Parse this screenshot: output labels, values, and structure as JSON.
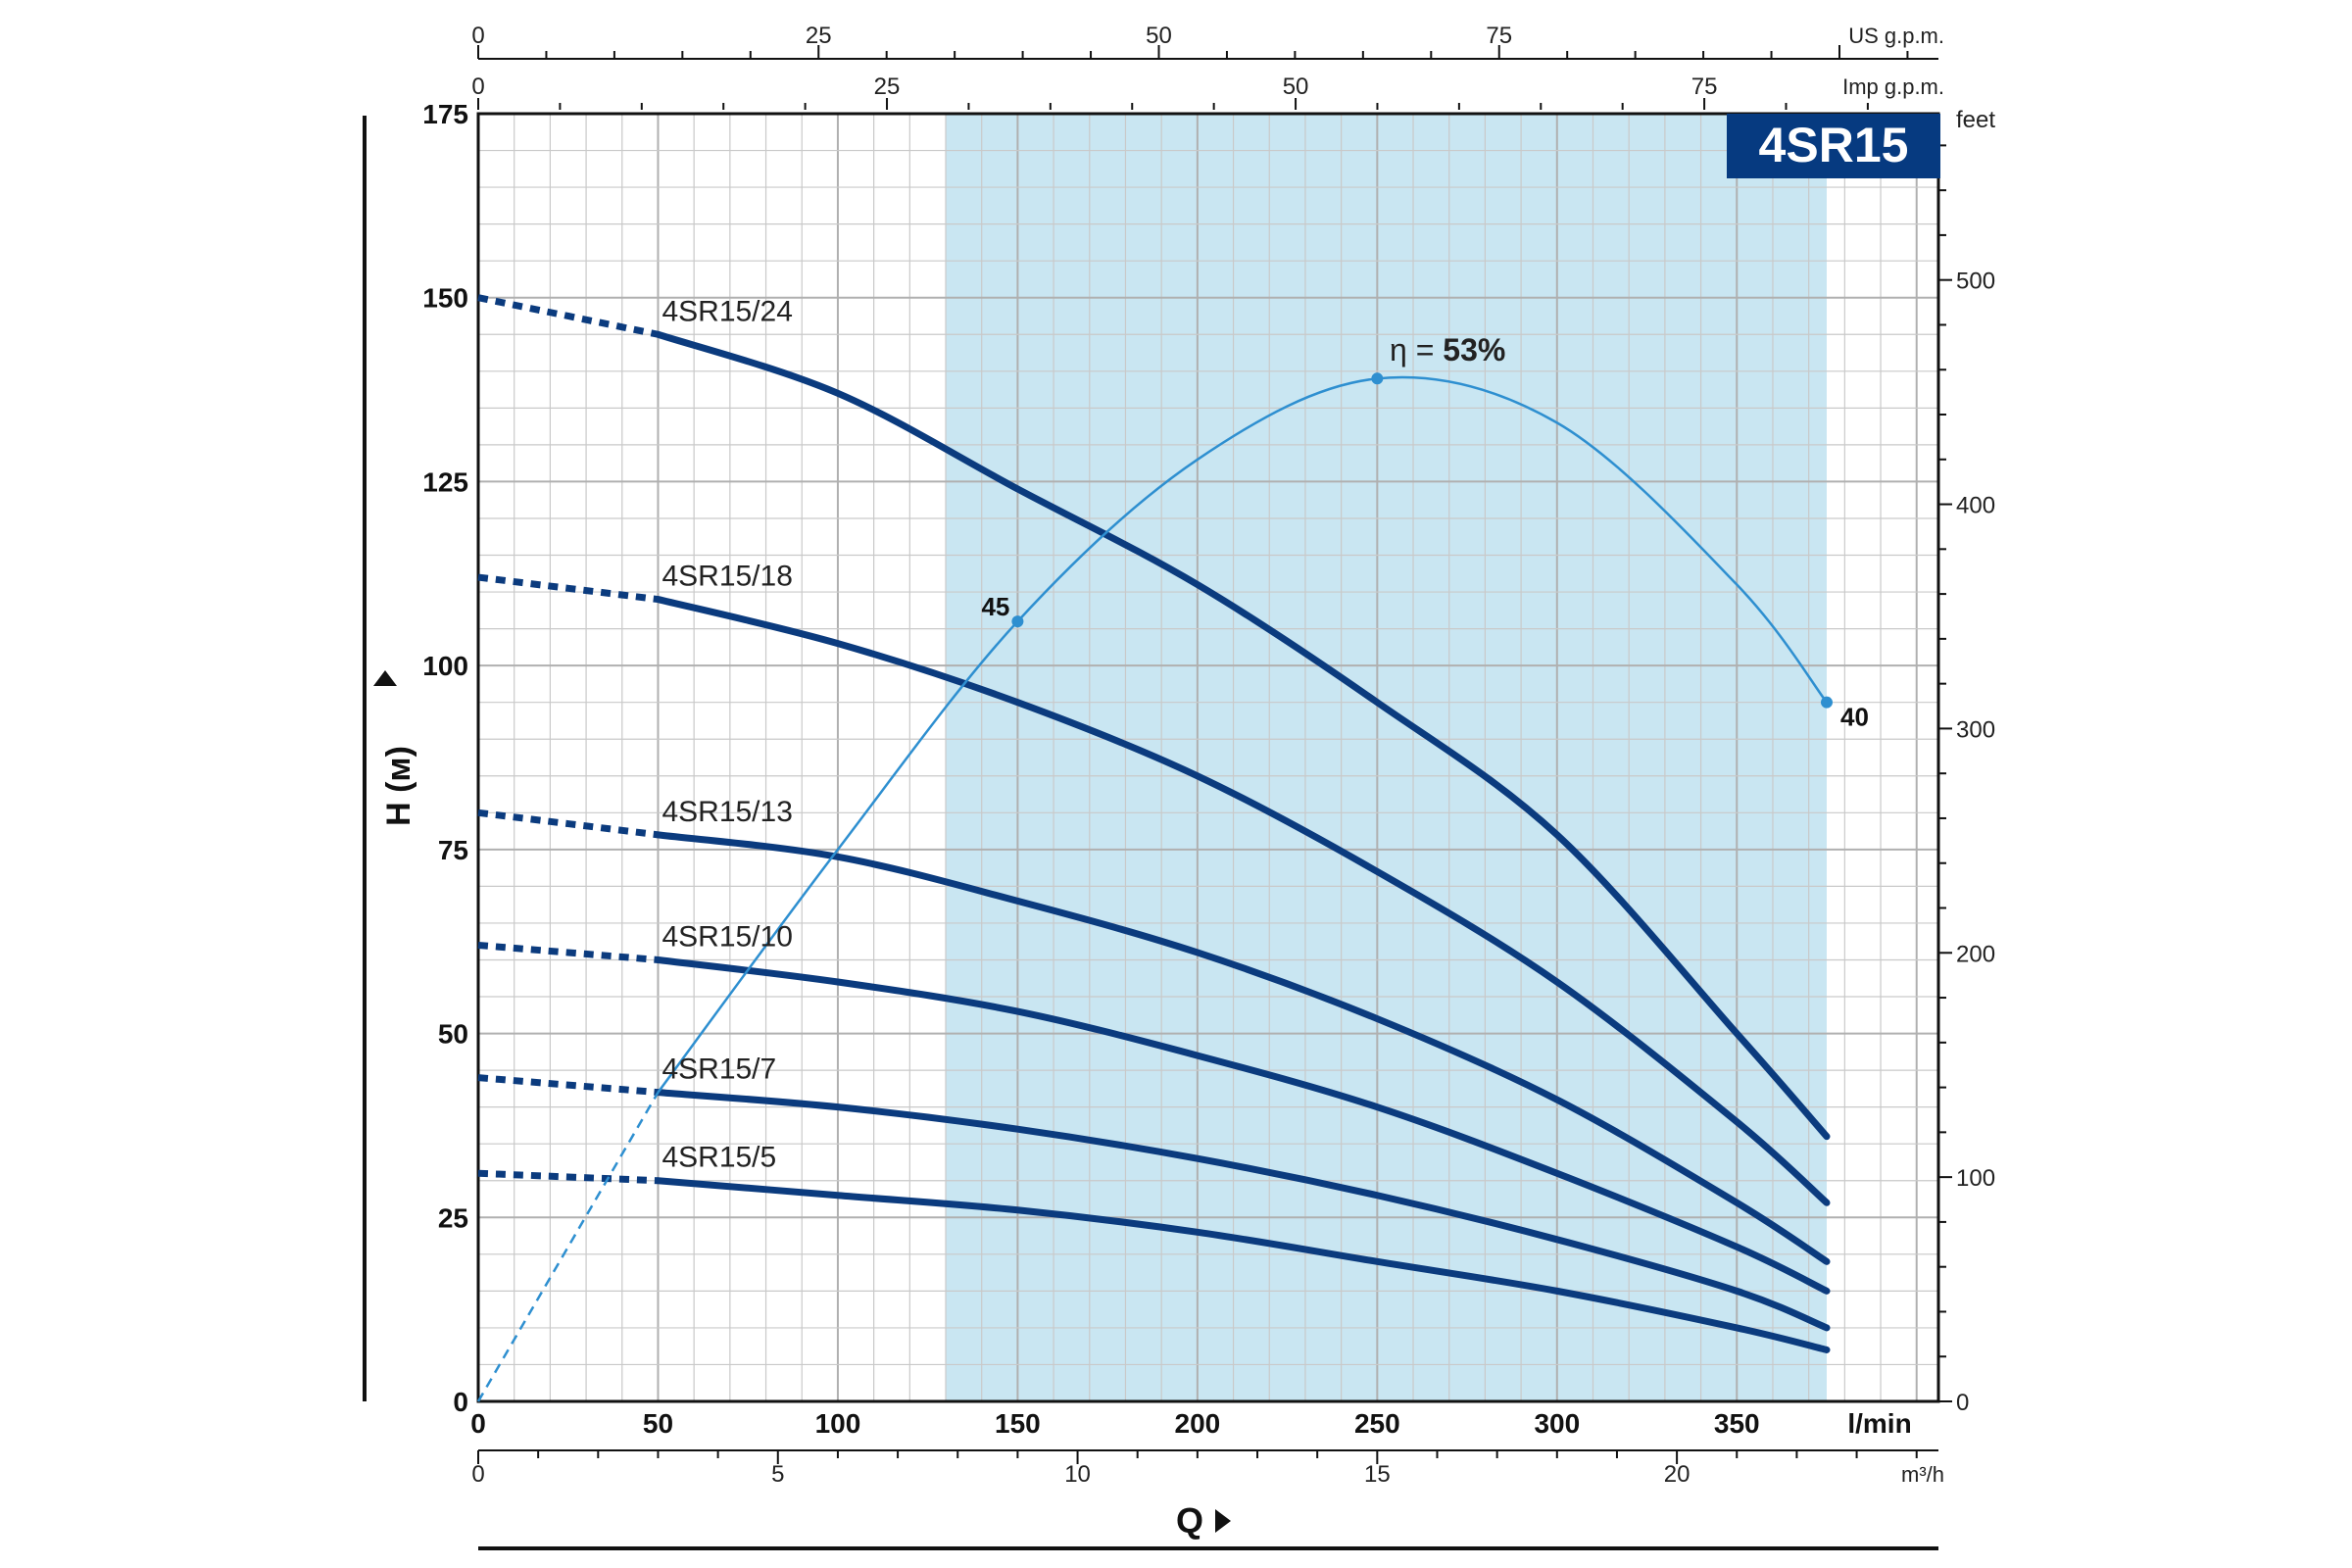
{
  "chart_data": {
    "type": "line",
    "title": "4SR15",
    "ylabel": "H (м)",
    "xlabel": "Q",
    "x_unit": "l/min",
    "ylim": [
      0,
      175
    ],
    "xlim": [
      0,
      400
    ],
    "x_ticks": [
      0,
      50,
      100,
      150,
      200,
      250,
      300,
      350
    ],
    "y_ticks": [
      0,
      25,
      50,
      75,
      100,
      125,
      150,
      175
    ],
    "m3h_unit": "m³/h",
    "m3h_ticks": [
      0,
      5,
      10,
      15,
      20
    ],
    "usgpm_unit": "US g.p.m.",
    "usgpm_ticks": [
      0,
      25,
      50,
      75
    ],
    "impgpm_unit": "Imp g.p.m.",
    "impgpm_ticks": [
      0,
      25,
      50,
      75
    ],
    "feet_unit": "feet",
    "feet_ticks": [
      0,
      100,
      200,
      300,
      400,
      500
    ],
    "operating_range": [
      130,
      375
    ],
    "series": [
      {
        "name": "4SR15/24",
        "dotted_to": 50,
        "x": [
          0,
          50,
          100,
          150,
          200,
          250,
          300,
          350,
          375
        ],
        "y": [
          150,
          145,
          137,
          124,
          111,
          95,
          77,
          50,
          36
        ]
      },
      {
        "name": "4SR15/18",
        "dotted_to": 50,
        "x": [
          0,
          50,
          100,
          150,
          200,
          250,
          300,
          350,
          375
        ],
        "y": [
          112,
          109,
          103,
          95,
          85,
          72,
          57,
          38,
          27
        ]
      },
      {
        "name": "4SR15/13",
        "dotted_to": 50,
        "x": [
          0,
          50,
          100,
          150,
          200,
          250,
          300,
          350,
          375
        ],
        "y": [
          80,
          77,
          74,
          68,
          61,
          52,
          41,
          27,
          19
        ]
      },
      {
        "name": "4SR15/10",
        "dotted_to": 50,
        "x": [
          0,
          50,
          100,
          150,
          200,
          250,
          300,
          350,
          375
        ],
        "y": [
          62,
          60,
          57,
          53,
          47,
          40,
          31,
          21,
          15
        ]
      },
      {
        "name": "4SR15/7",
        "dotted_to": 50,
        "x": [
          0,
          50,
          100,
          150,
          200,
          250,
          300,
          350,
          375
        ],
        "y": [
          44,
          42,
          40,
          37,
          33,
          28,
          22,
          15,
          10
        ]
      },
      {
        "name": "4SR15/5",
        "dotted_to": 50,
        "x": [
          0,
          50,
          100,
          150,
          200,
          250,
          300,
          350,
          375
        ],
        "y": [
          31,
          30,
          28,
          26,
          23,
          19,
          15,
          10,
          7
        ]
      }
    ],
    "efficiency": {
      "label_prefix": "η = ",
      "label_value": "53%",
      "x": [
        0,
        50,
        100,
        150,
        200,
        250,
        300,
        350,
        375
      ],
      "y": [
        0,
        42,
        75,
        106,
        128,
        139,
        133,
        111,
        95
      ],
      "dotted_to": 50,
      "points": [
        {
          "x": 150,
          "y": 106,
          "label": "45"
        },
        {
          "x": 250,
          "y": 139,
          "label": ""
        },
        {
          "x": 375,
          "y": 95,
          "label": "40"
        }
      ]
    },
    "colors": {
      "curve": "#0b3b7e",
      "efficiency": "#2e8fd0",
      "range_fill": "#c9e6f2",
      "title_bg": "#063a80",
      "grid": "#c9c9c9"
    }
  }
}
